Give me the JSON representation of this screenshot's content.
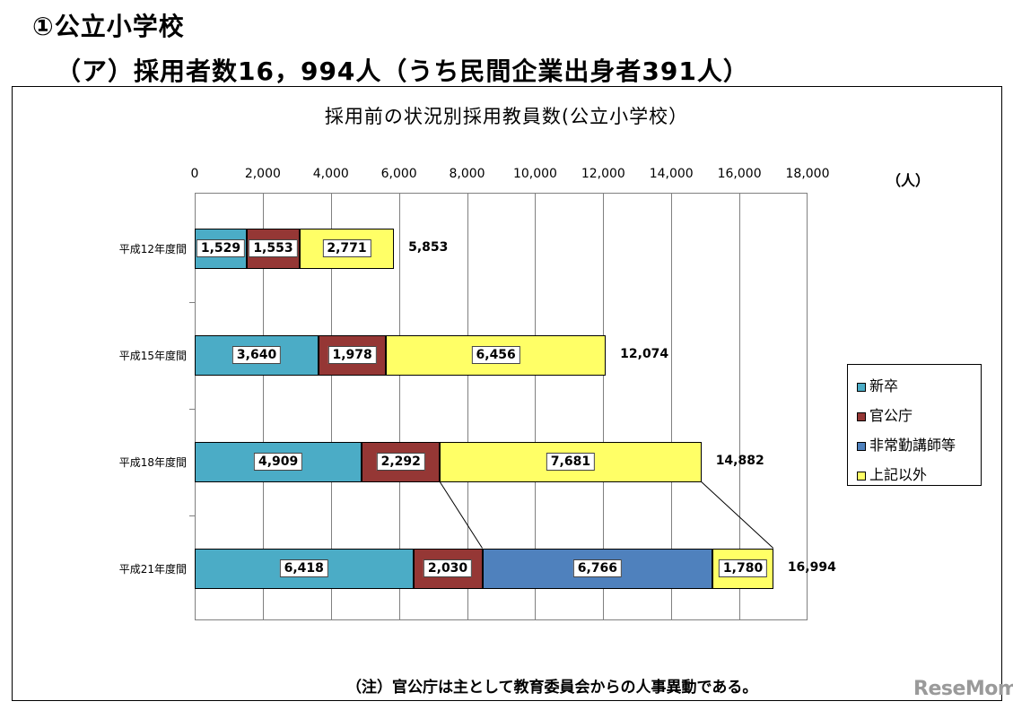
{
  "page": {
    "heading1": "①公立小学校",
    "heading2": "（ア）採用者数16，994人（うち民間企業出身者391人）",
    "note": "（注）官公庁は主として教育委員会からの人事異動である。",
    "logo": "ReseMom"
  },
  "chart_data": {
    "type": "bar",
    "orientation": "horizontal",
    "stacked": true,
    "title": "採用前の状況別採用教員数(公立小学校）",
    "unit_label": "（人）",
    "xlim": [
      0,
      18000
    ],
    "x_ticks": [
      "0",
      "2,000",
      "4,000",
      "6,000",
      "8,000",
      "10,000",
      "12,000",
      "14,000",
      "16,000",
      "18,000"
    ],
    "x_tick_values": [
      0,
      2000,
      4000,
      6000,
      8000,
      10000,
      12000,
      14000,
      16000,
      18000
    ],
    "categories": [
      "平成12年度間",
      "平成15年度間",
      "平成18年度間",
      "平成21年度間"
    ],
    "series": [
      {
        "name": "新卒",
        "color": "#4bacc6",
        "values": [
          1529,
          3640,
          4909,
          6418
        ],
        "labels": [
          "1,529",
          "3,640",
          "4,909",
          "6,418"
        ]
      },
      {
        "name": "官公庁",
        "color": "#953735",
        "values": [
          1553,
          1978,
          2292,
          2030
        ],
        "labels": [
          "1,553",
          "1,978",
          "2,292",
          "2,030"
        ]
      },
      {
        "name": "非常勤講師等",
        "color": "#4f81bd",
        "values": [
          0,
          0,
          0,
          6766
        ],
        "labels": [
          "",
          "",
          "",
          "6,766"
        ]
      },
      {
        "name": "上記以外",
        "color": "#ffff66",
        "values": [
          2771,
          6456,
          7681,
          1780
        ],
        "labels": [
          "2,771",
          "6,456",
          "7,681",
          "1,780"
        ]
      }
    ],
    "totals": [
      5853,
      12074,
      14882,
      16994
    ],
    "total_labels": [
      "5,853",
      "12,074",
      "14,882",
      "16,994"
    ],
    "grid": true,
    "legend_position": "right"
  }
}
